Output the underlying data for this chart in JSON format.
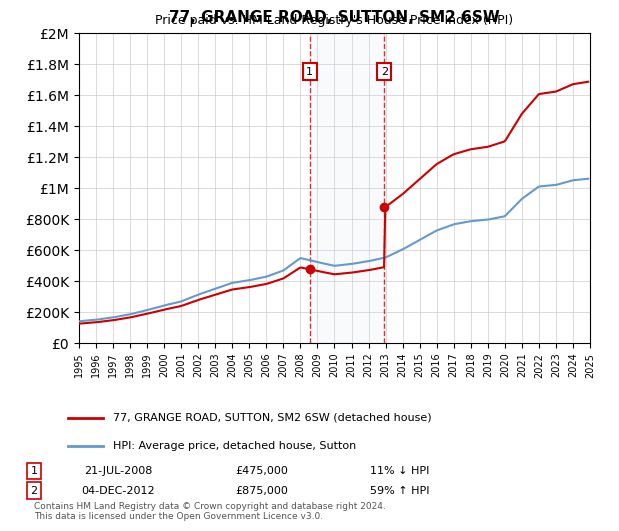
{
  "title": "77, GRANGE ROAD, SUTTON, SM2 6SW",
  "subtitle": "Price paid vs. HM Land Registry's House Price Index (HPI)",
  "legend_line1": "77, GRANGE ROAD, SUTTON, SM2 6SW (detached house)",
  "legend_line2": "HPI: Average price, detached house, Sutton",
  "sale1_date": "21-JUL-2008",
  "sale1_price": 475000,
  "sale1_label": "11% ↓ HPI",
  "sale1_year": 2008.55,
  "sale2_date": "04-DEC-2012",
  "sale2_price": 875000,
  "sale2_label": "59% ↑ HPI",
  "sale2_year": 2012.92,
  "footer": "Contains HM Land Registry data © Crown copyright and database right 2024.\nThis data is licensed under the Open Government Licence v3.0.",
  "red_color": "#cc0000",
  "blue_color": "#6699cc",
  "shade_color": "#d0e4f0",
  "annotation_box_color": "#cc0000",
  "ylim": [
    0,
    2000000
  ],
  "xlim_start": 1995,
  "xlim_end": 2025
}
